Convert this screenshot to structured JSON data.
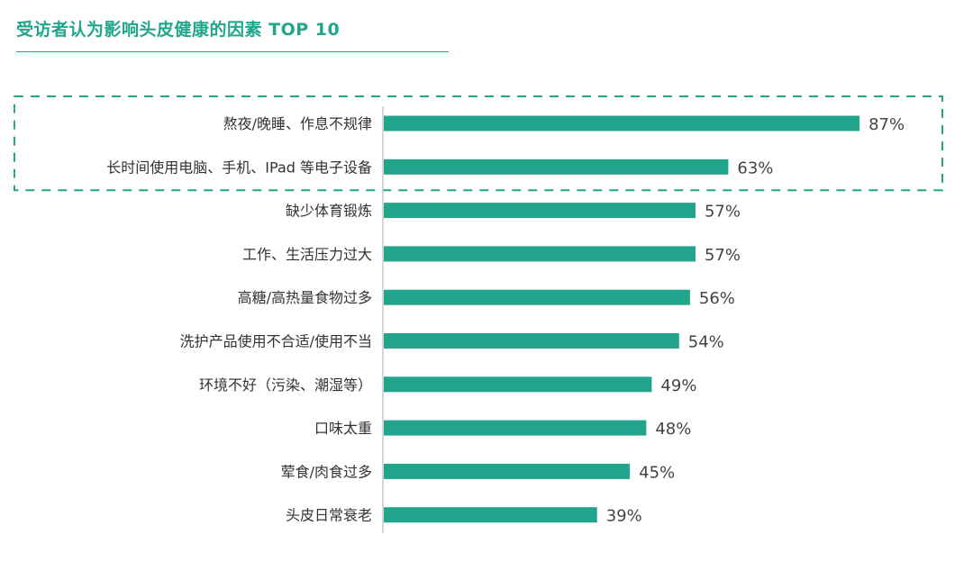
{
  "title": "受访者认为影响头皮健康的因素 TOP 10",
  "colors": {
    "accent": "#21a58c",
    "bar": "#21a58c",
    "axis": "#c8c8c8",
    "label": "#333333"
  },
  "chart_data": {
    "type": "bar",
    "orientation": "horizontal",
    "title": "受访者认为影响头皮健康的因素 TOP 10",
    "categories": [
      "熬夜/晚睡、作息不规律",
      "长时间使用电脑、手机、IPad 等电子设备",
      "缺少体育锻炼",
      "工作、生活压力过大",
      "高糖/高热量食物过多",
      "洗护产品使用不合适/使用不当",
      "环境不好（污染、潮湿等）",
      "口味太重",
      "荤食/肉食过多",
      "头皮日常衰老"
    ],
    "values": [
      87,
      63,
      57,
      57,
      56,
      54,
      49,
      48,
      45,
      39
    ],
    "value_labels": [
      "87%",
      "63%",
      "57%",
      "57%",
      "56%",
      "54%",
      "49%",
      "48%",
      "45%",
      "39%"
    ],
    "unit": "%",
    "xlim": [
      0,
      100
    ],
    "highlighted_categories": [
      0,
      1
    ],
    "grid": false,
    "legend": "none"
  }
}
